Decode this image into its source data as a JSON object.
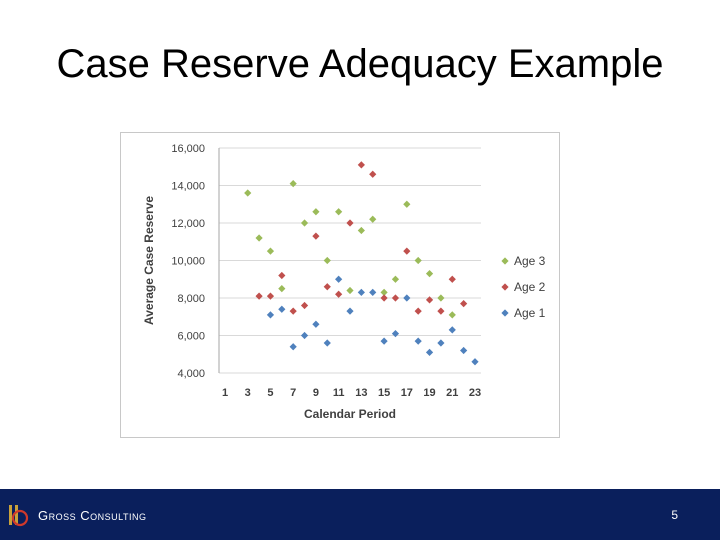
{
  "slide": {
    "title": "Case Reserve Adequacy Example",
    "page_number": "5"
  },
  "footer": {
    "brand": "Gross Consulting"
  },
  "colors": {
    "age3": "#9bbb59",
    "age2": "#c0504d",
    "age1": "#4f81bd",
    "footer_bg": "#0a1f5c"
  },
  "chart_data": {
    "type": "scatter",
    "title": "",
    "xlabel": "Calendar Period",
    "ylabel": "Average Case Reserve",
    "xlim": [
      1,
      23
    ],
    "ylim": [
      4000,
      16000
    ],
    "x_ticks": [
      "1",
      "3",
      "5",
      "7",
      "9",
      "11",
      "13",
      "15",
      "17",
      "19",
      "21",
      "23"
    ],
    "y_ticks": [
      "4,000",
      "6,000",
      "8,000",
      "10,000",
      "12,000",
      "14,000",
      "16,000"
    ],
    "y_tick_values": [
      4000,
      6000,
      8000,
      10000,
      12000,
      14000,
      16000
    ],
    "grid": "horizontal",
    "legend_position": "right",
    "series": [
      {
        "name": "Age 3",
        "color": "#9bbb59",
        "x": [
          3,
          4,
          5,
          6,
          7,
          8,
          9,
          10,
          11,
          12,
          13,
          14,
          15,
          16,
          17,
          18,
          19,
          20,
          21
        ],
        "y": [
          13600,
          11200,
          10500,
          8500,
          14100,
          12000,
          12600,
          10000,
          12600,
          8400,
          11600,
          12200,
          8300,
          9000,
          13000,
          10000,
          9300,
          8000,
          7100
        ]
      },
      {
        "name": "Age 2",
        "color": "#c0504d",
        "x": [
          4,
          5,
          6,
          7,
          8,
          9,
          10,
          11,
          12,
          13,
          14,
          15,
          16,
          17,
          18,
          19,
          20,
          21,
          22
        ],
        "y": [
          8100,
          8100,
          9200,
          7300,
          7600,
          11300,
          8600,
          8200,
          12000,
          15100,
          14600,
          8000,
          8000,
          10500,
          7300,
          7900,
          7300,
          9000,
          7700
        ]
      },
      {
        "name": "Age 1",
        "color": "#4f81bd",
        "x": [
          5,
          6,
          7,
          8,
          9,
          10,
          11,
          12,
          13,
          14,
          15,
          16,
          17,
          18,
          19,
          20,
          21,
          22,
          23
        ],
        "y": [
          7100,
          7400,
          5400,
          6000,
          6600,
          5600,
          9000,
          7300,
          8300,
          8300,
          5700,
          6100,
          8000,
          5700,
          5100,
          5600,
          6300,
          5200,
          4600
        ]
      }
    ]
  }
}
